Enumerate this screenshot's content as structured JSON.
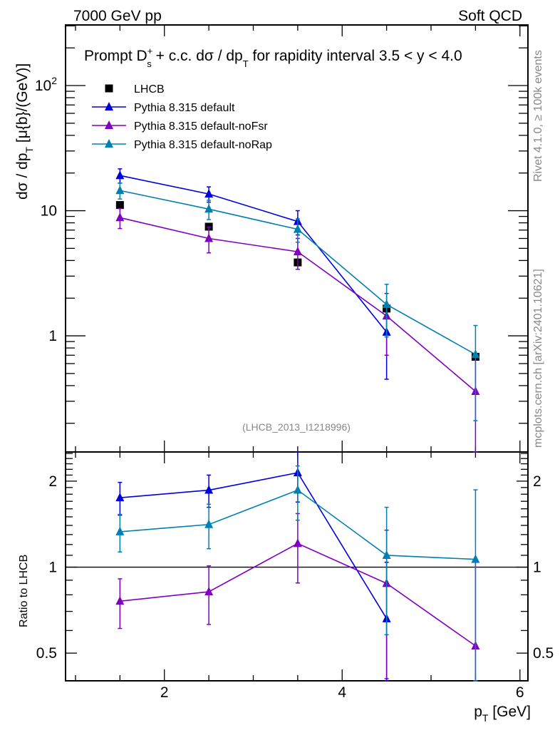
{
  "chart_data": [
    {
      "type": "line",
      "panel": "main",
      "header_left": "7000 GeV pp",
      "header_right": "Soft QCD",
      "title_parts": {
        "prefix": "Prompt D",
        "sup": "+",
        "sub": "s",
        "suffix": " + c.c.  dσ / dp",
        "sub2": "T",
        "tail": " for rapidity interval 3.5 < y < 4.0"
      },
      "ylabel": "dσ / dp_T [μ{b}/(GeV)]",
      "ylabel_parts": {
        "a": "dσ / dp",
        "sub": "T",
        "b": " [μ{b}/(GeV)]"
      },
      "yscale": "log",
      "ylim": [
        0.118,
        305
      ],
      "xlim": [
        0.888,
        6.09
      ],
      "y_tick_labels": [
        {
          "v": 100,
          "base": "10",
          "exp": "2"
        },
        {
          "v": 10,
          "base": "10",
          "exp": ""
        },
        {
          "v": 1,
          "base": "1",
          "exp": ""
        }
      ],
      "analysis_id": "(LHCB_2013_I1218996)",
      "legend_position": "top-left",
      "x": [
        1.5,
        2.5,
        3.5,
        4.5,
        5.5
      ],
      "series": [
        {
          "name": "LHCB",
          "color": "#000000",
          "marker": "square",
          "line": false,
          "values": [
            11.1,
            7.45,
            3.86,
            1.65,
            0.68
          ],
          "err_lo": [
            0,
            0,
            0,
            0,
            0
          ],
          "err_hi": [
            0,
            0,
            0,
            0,
            0
          ]
        },
        {
          "name": "Pythia 8.315 default",
          "color": "#0000dd",
          "marker": "triangle",
          "line": true,
          "values": [
            19.1,
            13.6,
            8.2,
            1.07,
            null
          ],
          "err_lo": [
            2.5,
            1.9,
            1.8,
            0.62,
            null
          ],
          "err_hi": [
            2.5,
            1.9,
            1.8,
            0.62,
            null
          ]
        },
        {
          "name": "Pythia 8.315 default-noFsr",
          "color": "#8000c0",
          "marker": "triangle",
          "line": true,
          "values": [
            8.8,
            6.0,
            4.7,
            1.44,
            0.36
          ],
          "err_lo": [
            1.6,
            1.4,
            1.3,
            0.74,
            0.36
          ],
          "err_hi": [
            1.6,
            1.4,
            1.3,
            0.74,
            0.36
          ]
        },
        {
          "name": "Pythia 8.315 default-noRap",
          "color": "#0080b0",
          "marker": "triangle",
          "line": true,
          "values": [
            14.5,
            10.3,
            7.1,
            1.78,
            0.71
          ],
          "err_lo": [
            2.1,
            1.8,
            1.5,
            0.8,
            0.5
          ],
          "err_hi": [
            2.1,
            1.8,
            1.5,
            0.8,
            0.5
          ]
        }
      ]
    },
    {
      "type": "line",
      "panel": "ratio",
      "ylabel": "Ratio to LHCB",
      "xlabel_parts": {
        "a": "p",
        "sub": "T",
        "b": " [GeV]"
      },
      "yscale": "log",
      "ylim": [
        0.4,
        2.53
      ],
      "xlim": [
        0.888,
        6.09
      ],
      "x_ticks": [
        2,
        4,
        6
      ],
      "y_ticks": [
        2,
        1,
        0.5
      ],
      "reference_line": 1,
      "x": [
        1.5,
        2.5,
        3.5,
        4.5,
        5.5
      ],
      "series": [
        {
          "name": "Pythia 8.315 default",
          "color": "#0000dd",
          "values": [
            1.75,
            1.86,
            2.14,
            0.66,
            null
          ],
          "err": [
            0.23,
            0.24,
            0.45,
            0.38,
            null
          ]
        },
        {
          "name": "Pythia 8.315 default-noFsr",
          "color": "#8000c0",
          "values": [
            0.76,
            0.82,
            1.21,
            0.877,
            0.53
          ],
          "err": [
            0.15,
            0.19,
            0.33,
            0.47,
            0.53
          ]
        },
        {
          "name": "Pythia 8.315 default-noRap",
          "color": "#0080b0",
          "values": [
            1.33,
            1.41,
            1.86,
            1.1,
            1.065
          ],
          "err": [
            0.2,
            0.25,
            0.4,
            0.52,
            0.8
          ]
        }
      ]
    }
  ],
  "side_text": {
    "rivet": "Rivet 4.1.0, ≥ 100k events",
    "mcplots": "mcplots.cern.ch [arXiv:2401.10621]"
  }
}
